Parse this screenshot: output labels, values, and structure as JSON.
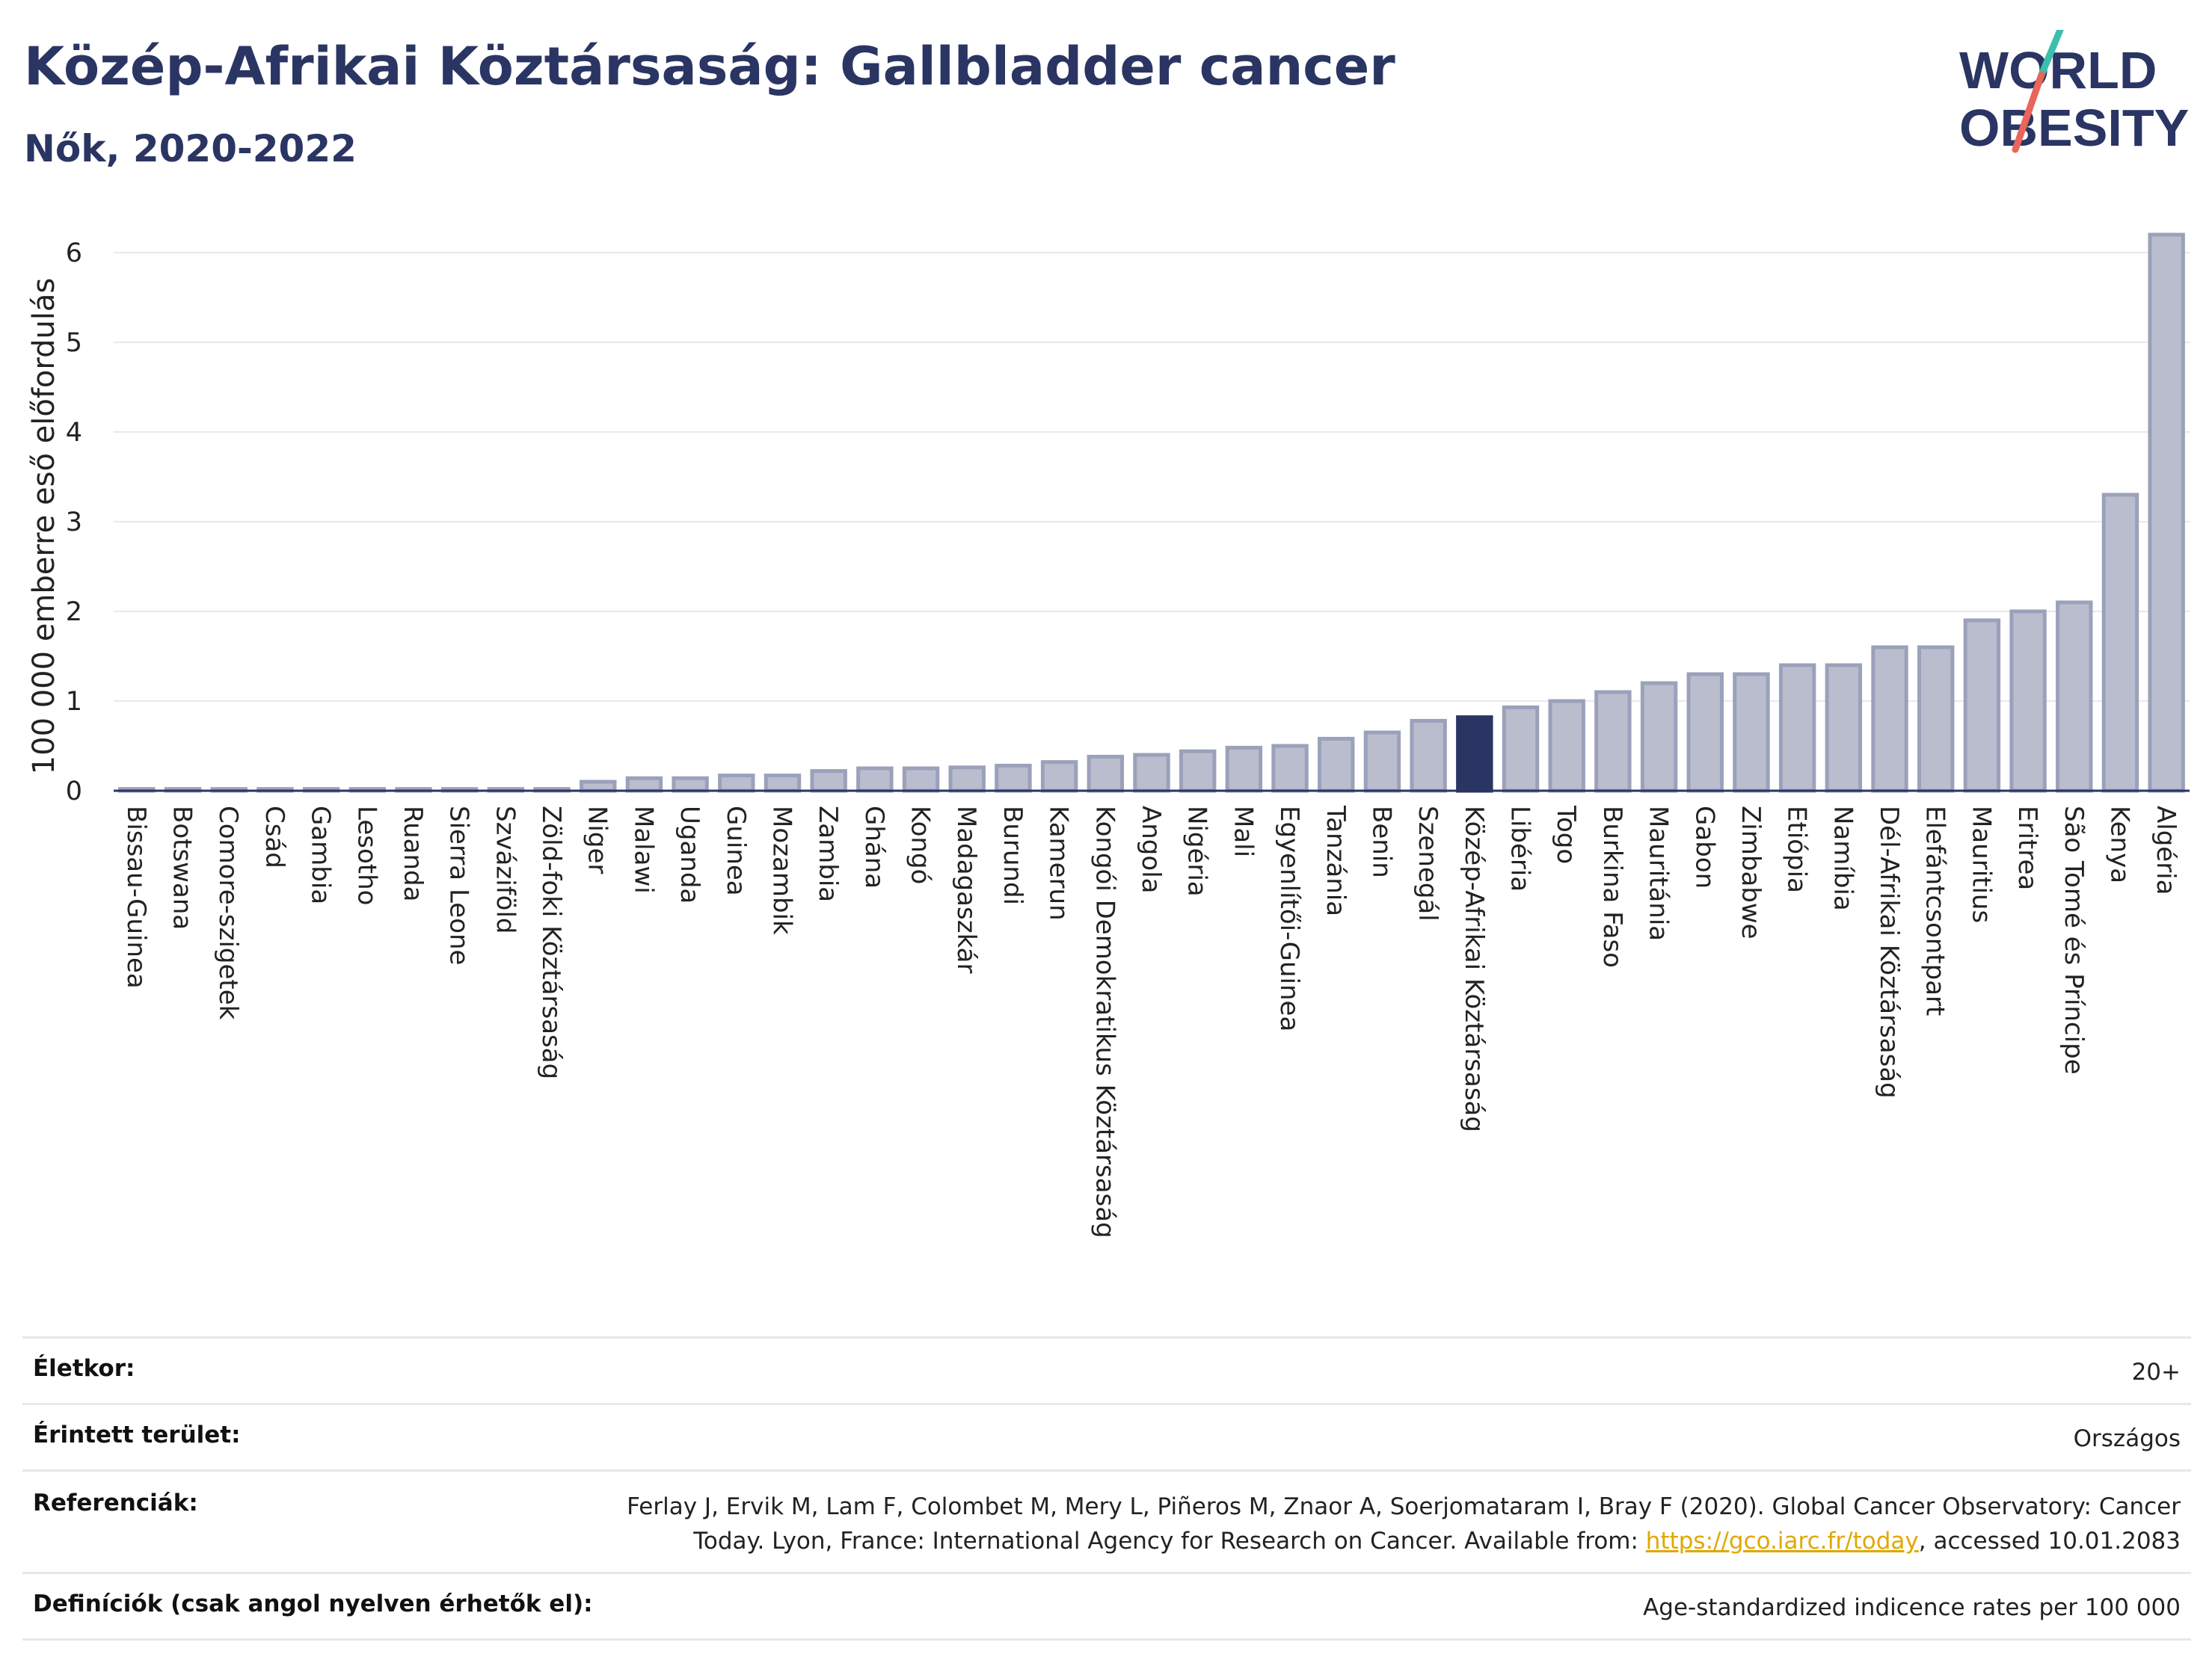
{
  "header": {
    "title": "Közép-Afrikai Köztársaság: Gallbladder cancer",
    "subtitle": "Nők, 2020-2022"
  },
  "logo": {
    "line1": "WORLD",
    "line2": "OBESITY"
  },
  "colors": {
    "bar": "#b9bdcd",
    "bar_stroke": "#9ba1ba",
    "highlight": "#2a3563",
    "text_dark": "#2a3563",
    "grid": "#e8e8ee",
    "accent_teal": "#3bbfad",
    "accent_red": "#e8665a"
  },
  "chart_data": {
    "type": "bar",
    "ylabel": "100 000 emberre eső előfordulás",
    "ylim": [
      0,
      6.4
    ],
    "yticks": [
      0,
      1,
      2,
      3,
      4,
      5,
      6
    ],
    "highlight": "Közép-Afrikai Köztársaság",
    "categories": [
      "Bissau-Guinea",
      "Botswana",
      "Comore-szigetek",
      "Csád",
      "Gambia",
      "Lesotho",
      "Ruanda",
      "Sierra Leone",
      "Szváziföld",
      "Zöld-foki Köztársaság",
      "Niger",
      "Malawi",
      "Uganda",
      "Guinea",
      "Mozambik",
      "Zambia",
      "Ghána",
      "Kongó",
      "Madagaszkár",
      "Burundi",
      "Kamerun",
      "Kongói Demokratikus Köztársaság",
      "Angola",
      "Nigéria",
      "Mali",
      "Egyenlítői-Guinea",
      "Tanzánia",
      "Benin",
      "Szenegál",
      "Közép-Afrikai Köztársaság",
      "Libéria",
      "Togo",
      "Burkina Faso",
      "Mauritánia",
      "Gabon",
      "Zimbabwe",
      "Etiópia",
      "Namíbia",
      "Dél-Afrikai Köztársaság",
      "Elefántcsontpart",
      "Mauritius",
      "Eritrea",
      "São Tomé és Príncipe",
      "Kenya",
      "Algéria"
    ],
    "values": [
      0.02,
      0.02,
      0.02,
      0.02,
      0.02,
      0.02,
      0.02,
      0.02,
      0.02,
      0.02,
      0.1,
      0.14,
      0.14,
      0.17,
      0.17,
      0.22,
      0.25,
      0.25,
      0.26,
      0.28,
      0.32,
      0.38,
      0.4,
      0.44,
      0.48,
      0.5,
      0.58,
      0.65,
      0.78,
      0.82,
      0.93,
      1.0,
      1.1,
      1.2,
      1.3,
      1.3,
      1.4,
      1.4,
      1.6,
      1.6,
      1.9,
      2.0,
      2.1,
      3.3,
      6.2
    ]
  },
  "info": {
    "age_label": "Életkor:",
    "age_value": "20+",
    "area_label": "Érintett terület:",
    "area_value": "Országos",
    "ref_label": "Referenciák:",
    "ref_line1": "Ferlay J, Ervik M, Lam F, Colombet M, Mery L, Piñeros M, Znaor A, Soerjomataram I, Bray F (2020). Global Cancer Observatory: Cancer",
    "ref_line2_pre": "Today. Lyon, France: International Agency for Research on Cancer. Available from: ",
    "ref_link": "https://gco.iarc.fr/today",
    "ref_line2_post": ", accessed 10.01.2083",
    "def_label": "Definíciók (csak angol nyelven érhetők el):",
    "def_value": "Age-standardized indicence rates per 100 000"
  }
}
